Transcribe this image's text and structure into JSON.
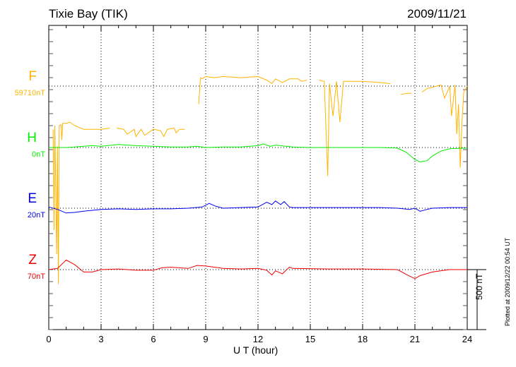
{
  "chart_data": {
    "type": "line",
    "title": "Tixie Bay (TIK)",
    "date": "2009/11/21",
    "xlabel": "U T (hour)",
    "xlim": [
      0,
      24
    ],
    "xticks": [
      "0",
      "3",
      "6",
      "9",
      "12",
      "15",
      "18",
      "21",
      "24"
    ],
    "scale_bar": "500 nT",
    "plotted_note": "Plotted at 2009/12/22 00:54 UT",
    "series": [
      {
        "name": "F",
        "baseline_label": "59710nT",
        "color": "#ffb400",
        "points": [
          [
            0.25,
            -360
          ],
          [
            0.3,
            -1200
          ],
          [
            0.35,
            -330
          ],
          [
            0.45,
            -1400
          ],
          [
            0.5,
            -500
          ],
          [
            0.55,
            -1650
          ],
          [
            0.6,
            -330
          ],
          [
            0.7,
            -320
          ],
          [
            0.75,
            -450
          ],
          [
            0.8,
            -310
          ],
          [
            1.0,
            -310
          ],
          [
            1.2,
            -300
          ],
          [
            1.5,
            -330
          ],
          [
            2.0,
            -360
          ],
          [
            3.0,
            -360
          ],
          [
            3.5,
            -350
          ],
          null,
          [
            3.9,
            -350
          ],
          [
            4.3,
            -360
          ],
          [
            4.5,
            -400
          ],
          [
            4.9,
            -360
          ],
          [
            5.0,
            -420
          ],
          [
            5.3,
            -360
          ],
          [
            5.5,
            -410
          ],
          [
            6.0,
            -360
          ],
          [
            6.4,
            -370
          ],
          [
            6.6,
            -420
          ],
          [
            6.8,
            -360
          ],
          [
            7.2,
            -350
          ],
          [
            7.3,
            -390
          ],
          [
            7.5,
            -360
          ],
          [
            7.8,
            -360
          ],
          null,
          [
            8.6,
            -150
          ],
          [
            8.7,
            70
          ],
          [
            8.8,
            60
          ],
          [
            9.0,
            80
          ],
          [
            9.5,
            70
          ],
          [
            10.0,
            80
          ],
          [
            11.0,
            70
          ],
          [
            12.0,
            80
          ],
          [
            12.5,
            50
          ],
          [
            12.8,
            20
          ],
          [
            13.0,
            60
          ],
          [
            13.4,
            30
          ],
          [
            13.8,
            60
          ],
          [
            14.3,
            60
          ],
          [
            14.5,
            40
          ],
          [
            14.8,
            50
          ],
          null,
          [
            15.5,
            50
          ],
          [
            15.8,
            40
          ],
          [
            16.0,
            -750
          ],
          [
            16.1,
            20
          ],
          [
            16.3,
            -250
          ],
          [
            16.5,
            40
          ],
          [
            16.7,
            -300
          ],
          [
            16.9,
            40
          ],
          [
            17.3,
            40
          ],
          [
            18.0,
            40
          ],
          [
            19.0,
            30
          ],
          [
            19.6,
            20
          ],
          null,
          [
            20.2,
            -70
          ],
          [
            20.5,
            -60
          ],
          [
            20.8,
            -60
          ],
          null,
          [
            21.4,
            -50
          ],
          [
            21.7,
            -20
          ],
          [
            22.0,
            -10
          ],
          [
            22.5,
            10
          ],
          [
            22.7,
            -100
          ],
          [
            23.0,
            0
          ],
          [
            23.1,
            -250
          ],
          [
            23.3,
            10
          ],
          [
            23.4,
            -400
          ],
          [
            23.5,
            -150
          ],
          [
            23.6,
            -680
          ],
          [
            23.7,
            -300
          ],
          [
            23.8,
            -50
          ],
          [
            24.0,
            0
          ]
        ]
      },
      {
        "name": "H",
        "baseline_label": "0nT",
        "color": "#00ee00",
        "points": [
          [
            0,
            0
          ],
          [
            1,
            0
          ],
          [
            1.5,
            5
          ],
          [
            2,
            10
          ],
          [
            2.5,
            15
          ],
          [
            3,
            10
          ],
          [
            4,
            25
          ],
          [
            5,
            15
          ],
          [
            6,
            10
          ],
          [
            7,
            5
          ],
          [
            8,
            5
          ],
          [
            8.5,
            10
          ],
          [
            9,
            0
          ],
          [
            10,
            5
          ],
          [
            11,
            5
          ],
          [
            12,
            15
          ],
          [
            12.3,
            30
          ],
          [
            12.7,
            10
          ],
          [
            13,
            20
          ],
          [
            14,
            5
          ],
          [
            15,
            0
          ],
          [
            16,
            0
          ],
          [
            18,
            0
          ],
          [
            19,
            0
          ],
          [
            20,
            -5
          ],
          [
            20.5,
            -40
          ],
          [
            21,
            -100
          ],
          [
            21.3,
            -120
          ],
          [
            21.7,
            -110
          ],
          [
            22,
            -70
          ],
          [
            22.5,
            -30
          ],
          [
            23,
            -10
          ],
          [
            24,
            -5
          ]
        ]
      },
      {
        "name": "E",
        "baseline_label": "20nT",
        "color": "#0000ee",
        "points": [
          [
            0,
            10
          ],
          [
            0.5,
            -10
          ],
          [
            1,
            -40
          ],
          [
            1.5,
            -35
          ],
          [
            2,
            -25
          ],
          [
            3,
            -10
          ],
          [
            4,
            -5
          ],
          [
            5,
            -10
          ],
          [
            6,
            -5
          ],
          [
            7,
            -5
          ],
          [
            8,
            0
          ],
          [
            8.8,
            10
          ],
          [
            9.2,
            40
          ],
          [
            9.6,
            15
          ],
          [
            10,
            0
          ],
          [
            11,
            5
          ],
          [
            12,
            10
          ],
          [
            12.5,
            50
          ],
          [
            12.8,
            30
          ],
          [
            13,
            60
          ],
          [
            13.3,
            30
          ],
          [
            13.5,
            55
          ],
          [
            13.8,
            10
          ],
          [
            14,
            5
          ],
          [
            16,
            5
          ],
          [
            18,
            5
          ],
          [
            19,
            5
          ],
          [
            20,
            0
          ],
          [
            20.7,
            -10
          ],
          [
            21,
            0
          ],
          [
            21.3,
            -25
          ],
          [
            21.7,
            -10
          ],
          [
            22,
            0
          ],
          [
            23,
            5
          ],
          [
            24,
            5
          ]
        ]
      },
      {
        "name": "Z",
        "baseline_label": "70nT",
        "color": "#ee0000",
        "points": [
          [
            0,
            0
          ],
          [
            0.5,
            10
          ],
          [
            1,
            80
          ],
          [
            1.5,
            40
          ],
          [
            2,
            -20
          ],
          [
            2.5,
            -20
          ],
          [
            3,
            0
          ],
          [
            4,
            5
          ],
          [
            5,
            -5
          ],
          [
            6,
            -5
          ],
          [
            6.5,
            15
          ],
          [
            7,
            20
          ],
          [
            8,
            10
          ],
          [
            8.5,
            35
          ],
          [
            9,
            30
          ],
          [
            10,
            10
          ],
          [
            11,
            5
          ],
          [
            12,
            10
          ],
          [
            12.5,
            -5
          ],
          [
            12.8,
            -45
          ],
          [
            13,
            -10
          ],
          [
            13.4,
            -35
          ],
          [
            13.8,
            20
          ],
          [
            14,
            10
          ],
          [
            16,
            5
          ],
          [
            18,
            5
          ],
          [
            20,
            0
          ],
          [
            20.5,
            -40
          ],
          [
            21,
            -75
          ],
          [
            21.3,
            -50
          ],
          [
            22,
            -20
          ],
          [
            23,
            0
          ],
          [
            24,
            0
          ]
        ]
      }
    ]
  }
}
